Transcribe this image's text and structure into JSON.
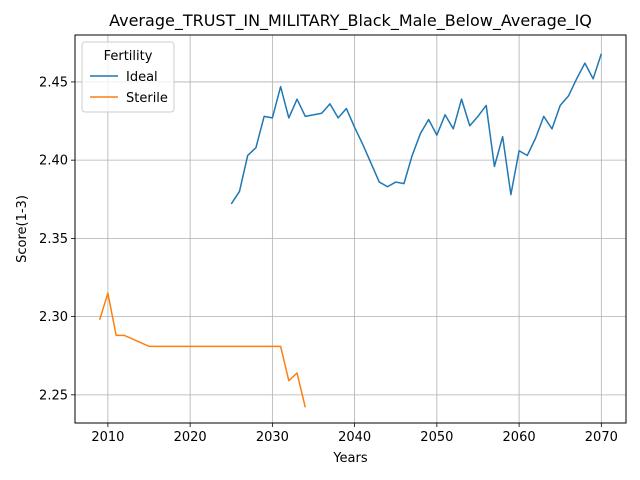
{
  "chart_data": {
    "type": "line",
    "title": "Average_TRUST_IN_MILITARY_Black_Male_Below_Average_IQ",
    "xlabel": "Years",
    "ylabel": "Score(1-3)",
    "xlim": [
      2006,
      2073
    ],
    "ylim": [
      2.232,
      2.48
    ],
    "xticks": [
      2010,
      2020,
      2030,
      2040,
      2050,
      2060,
      2070
    ],
    "yticks": [
      2.25,
      2.3,
      2.35,
      2.4,
      2.45
    ],
    "ytick_labels": [
      "2.25",
      "2.30",
      "2.35",
      "2.40",
      "2.45"
    ],
    "grid": true,
    "legend": {
      "title": "Fertility",
      "placement": "top-left"
    },
    "series": [
      {
        "name": "Ideal",
        "color": "#1f77b4",
        "x": [
          2025,
          2026,
          2027,
          2028,
          2029,
          2030,
          2031,
          2032,
          2033,
          2034,
          2036,
          2037,
          2038,
          2039,
          2040,
          2041,
          2042,
          2043,
          2044,
          2045,
          2046,
          2047,
          2048,
          2049,
          2050,
          2051,
          2052,
          2053,
          2054,
          2055,
          2056,
          2057,
          2058,
          2059,
          2060,
          2061,
          2062,
          2063,
          2064,
          2065,
          2066,
          2067,
          2068,
          2069,
          2070
        ],
        "y": [
          2.372,
          2.38,
          2.403,
          2.408,
          2.428,
          2.427,
          2.447,
          2.427,
          2.439,
          2.428,
          2.43,
          2.436,
          2.427,
          2.433,
          2.421,
          2.41,
          2.398,
          2.386,
          2.383,
          2.386,
          2.385,
          2.403,
          2.417,
          2.426,
          2.416,
          2.429,
          2.42,
          2.439,
          2.422,
          2.428,
          2.435,
          2.396,
          2.415,
          2.378,
          2.406,
          2.403,
          2.414,
          2.428,
          2.42,
          2.435,
          2.441,
          2.452,
          2.462,
          2.452,
          2.468
        ]
      },
      {
        "name": "Sterile",
        "color": "#ff7f0e",
        "x": [
          2009,
          2010,
          2011,
          2012,
          2015,
          2020,
          2025,
          2030,
          2031,
          2032,
          2033,
          2034
        ],
        "y": [
          2.298,
          2.315,
          2.288,
          2.288,
          2.281,
          2.281,
          2.281,
          2.281,
          2.281,
          2.259,
          2.264,
          2.242
        ]
      }
    ]
  }
}
